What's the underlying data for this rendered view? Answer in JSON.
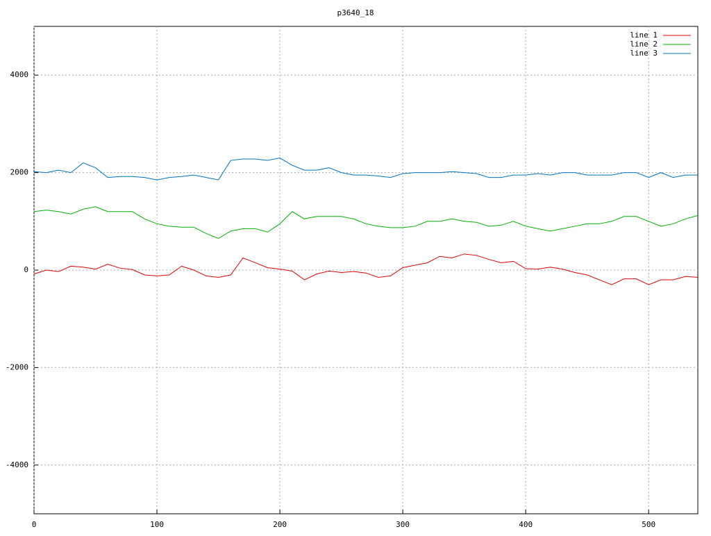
{
  "chart_data": {
    "type": "line",
    "title": "p3640_18",
    "x": [
      0,
      10,
      20,
      30,
      40,
      50,
      60,
      70,
      80,
      90,
      100,
      110,
      120,
      130,
      140,
      150,
      160,
      170,
      180,
      190,
      200,
      210,
      220,
      230,
      240,
      250,
      260,
      270,
      280,
      290,
      300,
      310,
      320,
      330,
      340,
      350,
      360,
      370,
      380,
      390,
      400,
      410,
      420,
      430,
      440,
      450,
      460,
      470,
      480,
      490,
      500,
      510,
      520,
      530,
      540
    ],
    "series": [
      {
        "name": "line 1",
        "color": "#e00000",
        "values": [
          -80,
          0,
          -30,
          80,
          60,
          20,
          120,
          40,
          10,
          -100,
          -120,
          -100,
          80,
          0,
          -120,
          -150,
          -100,
          250,
          150,
          50,
          20,
          -20,
          -200,
          -80,
          -20,
          -50,
          -30,
          -60,
          -150,
          -120,
          50,
          100,
          150,
          280,
          250,
          330,
          300,
          220,
          150,
          180,
          30,
          20,
          60,
          20,
          -50,
          -100,
          -200,
          -300,
          -180,
          -180,
          -300,
          -200,
          -200,
          -130,
          -150
        ]
      },
      {
        "name": "line 2",
        "color": "#00b000",
        "values": [
          1200,
          1230,
          1200,
          1150,
          1250,
          1300,
          1200,
          1200,
          1200,
          1050,
          950,
          900,
          880,
          880,
          750,
          650,
          800,
          850,
          850,
          780,
          950,
          1200,
          1050,
          1100,
          1100,
          1100,
          1050,
          950,
          900,
          870,
          870,
          900,
          1000,
          1000,
          1050,
          1000,
          980,
          900,
          920,
          1000,
          900,
          850,
          800,
          850,
          900,
          950,
          950,
          1000,
          1100,
          1100,
          1000,
          900,
          950,
          1050,
          1120
        ]
      },
      {
        "name": "line 3",
        "color": "#0070c0",
        "values": [
          2020,
          2000,
          2050,
          2000,
          2200,
          2100,
          1900,
          1920,
          1920,
          1900,
          1850,
          1900,
          1920,
          1950,
          1900,
          1850,
          2250,
          2280,
          2280,
          2250,
          2300,
          2150,
          2050,
          2050,
          2100,
          2000,
          1950,
          1950,
          1930,
          1900,
          1980,
          2000,
          2000,
          2000,
          2020,
          2000,
          1980,
          1900,
          1900,
          1950,
          1950,
          1980,
          1950,
          2000,
          2000,
          1950,
          1950,
          1950,
          2000,
          2000,
          1900,
          2000,
          1900,
          1950,
          1950
        ]
      }
    ],
    "xlim": [
      0,
      540
    ],
    "xticks": [
      0,
      100,
      200,
      300,
      400,
      500
    ],
    "ylim": [
      -5000,
      5000
    ],
    "yticks": [
      -4000,
      -2000,
      0,
      2000,
      4000
    ],
    "grid": true,
    "legend": "top-right"
  }
}
